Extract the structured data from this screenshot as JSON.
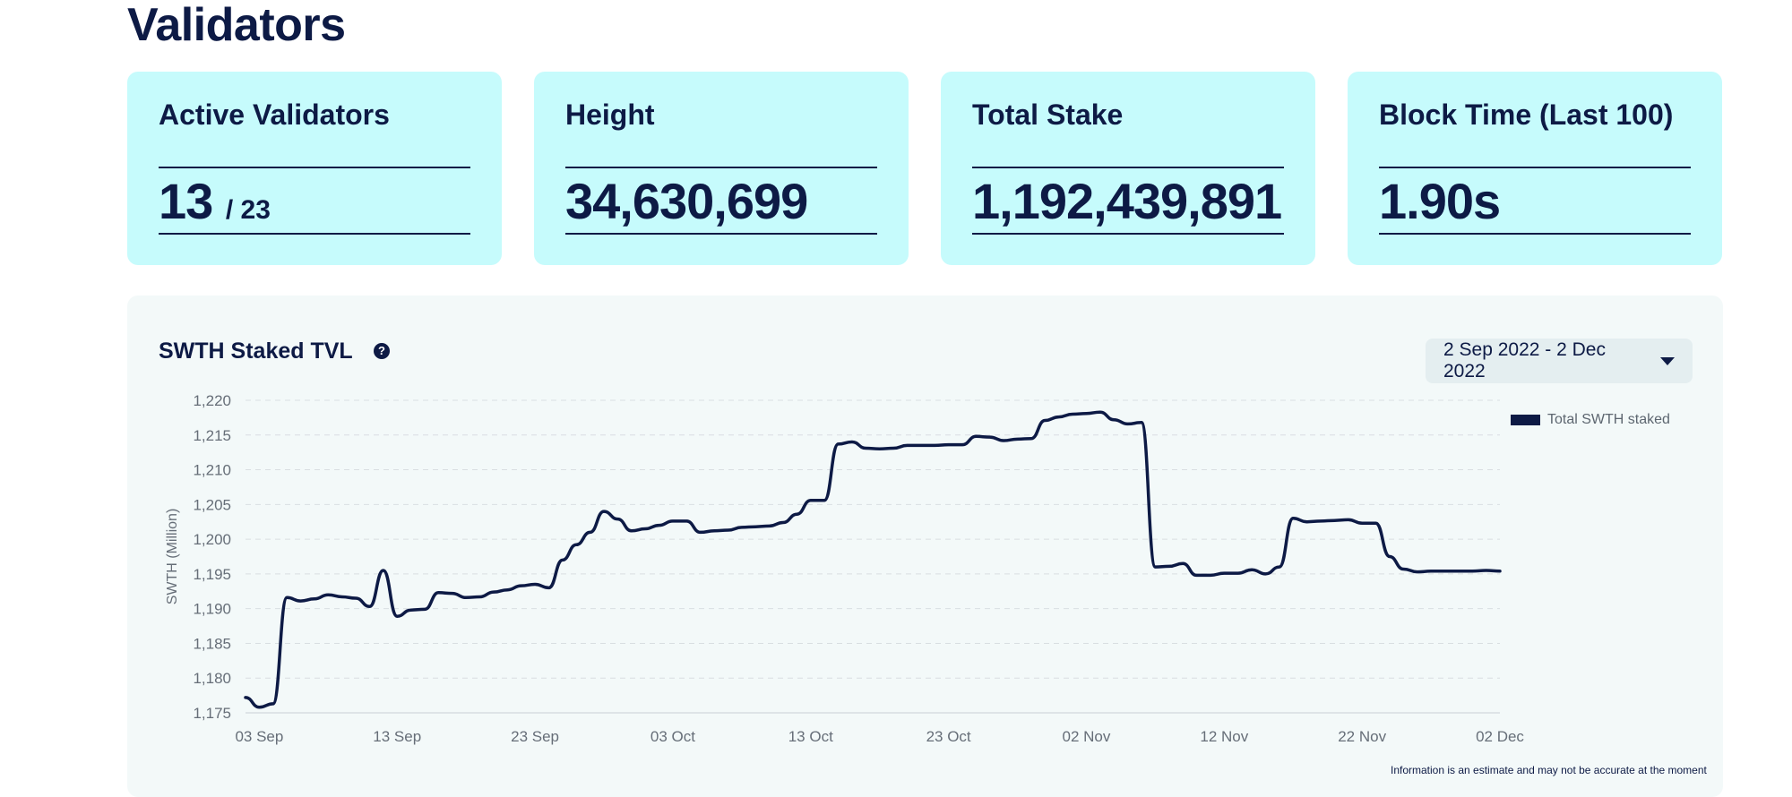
{
  "page": {
    "title": "Validators"
  },
  "cards": [
    {
      "label": "Active Validators",
      "value": "13",
      "suffix": "/ 23"
    },
    {
      "label": "Height",
      "value": "34,630,699"
    },
    {
      "label": "Total Stake",
      "value": "1,192,439,891"
    },
    {
      "label": "Block Time (Last 100)",
      "value": "1.90s"
    }
  ],
  "chart_panel": {
    "title": "SWTH Staked TVL",
    "help_icon": "question-circle-icon",
    "date_range": "2 Sep 2022 - 2 Dec 2022",
    "disclaimer": "Information is an estimate and may not be accurate at the moment"
  },
  "chart_data": {
    "type": "line",
    "ylabel": "SWTH (Million)",
    "xlabel": "",
    "ylim": [
      1175,
      1220
    ],
    "ytick_labels": [
      "1,220",
      "1,215",
      "1,210",
      "1,205",
      "1,200",
      "1,195",
      "1,190",
      "1,185",
      "1,180",
      "1,175"
    ],
    "ytick_values": [
      1220,
      1215,
      1210,
      1205,
      1200,
      1195,
      1190,
      1185,
      1180,
      1175
    ],
    "xtick_labels": [
      "03 Sep",
      "13 Sep",
      "23 Sep",
      "03 Oct",
      "13 Oct",
      "23 Oct",
      "02 Nov",
      "12 Nov",
      "22 Nov",
      "02 Dec"
    ],
    "xlim": [
      "2022-09-02",
      "2022-12-02"
    ],
    "grid": "horizontal-dashed",
    "legend_position": "top-right",
    "series": [
      {
        "name": "Total SWTH staked",
        "color": "#0d1a45",
        "x": [
          "2022-09-02",
          "2022-09-03",
          "2022-09-04",
          "2022-09-05",
          "2022-09-06",
          "2022-09-07",
          "2022-09-08",
          "2022-09-09",
          "2022-09-10",
          "2022-09-11",
          "2022-09-12",
          "2022-09-13",
          "2022-09-14",
          "2022-09-15",
          "2022-09-16",
          "2022-09-17",
          "2022-09-18",
          "2022-09-19",
          "2022-09-20",
          "2022-09-21",
          "2022-09-22",
          "2022-09-23",
          "2022-09-24",
          "2022-09-25",
          "2022-09-26",
          "2022-09-27",
          "2022-09-28",
          "2022-09-29",
          "2022-09-30",
          "2022-10-01",
          "2022-10-02",
          "2022-10-03",
          "2022-10-04",
          "2022-10-05",
          "2022-10-06",
          "2022-10-07",
          "2022-10-08",
          "2022-10-09",
          "2022-10-10",
          "2022-10-11",
          "2022-10-12",
          "2022-10-13",
          "2022-10-14",
          "2022-10-15",
          "2022-10-16",
          "2022-10-17",
          "2022-10-18",
          "2022-10-19",
          "2022-10-20",
          "2022-10-21",
          "2022-10-22",
          "2022-10-23",
          "2022-10-24",
          "2022-10-25",
          "2022-10-26",
          "2022-10-27",
          "2022-10-28",
          "2022-10-29",
          "2022-10-30",
          "2022-10-31",
          "2022-11-01",
          "2022-11-02",
          "2022-11-03",
          "2022-11-04",
          "2022-11-05",
          "2022-11-06",
          "2022-11-07",
          "2022-11-08",
          "2022-11-09",
          "2022-11-10",
          "2022-11-11",
          "2022-11-12",
          "2022-11-13",
          "2022-11-14",
          "2022-11-15",
          "2022-11-16",
          "2022-11-17",
          "2022-11-18",
          "2022-11-19",
          "2022-11-20",
          "2022-11-21",
          "2022-11-22",
          "2022-11-23",
          "2022-11-24",
          "2022-11-25",
          "2022-11-26",
          "2022-11-27",
          "2022-11-28",
          "2022-11-29",
          "2022-11-30",
          "2022-12-01",
          "2022-12-02"
        ],
        "y": [
          1177.2,
          1175.8,
          1176.3,
          1191.6,
          1191.1,
          1191.4,
          1192.0,
          1191.7,
          1191.5,
          1190.3,
          1195.5,
          1188.9,
          1189.8,
          1189.9,
          1192.3,
          1192.2,
          1191.6,
          1191.7,
          1192.4,
          1192.7,
          1193.3,
          1193.5,
          1193.0,
          1197.0,
          1199.2,
          1201.0,
          1204.0,
          1202.9,
          1201.2,
          1201.5,
          1202.0,
          1202.6,
          1202.6,
          1201.0,
          1201.2,
          1201.3,
          1201.7,
          1201.8,
          1201.9,
          1202.4,
          1203.6,
          1205.6,
          1205.6,
          1213.7,
          1214.0,
          1213.1,
          1213.0,
          1213.1,
          1213.5,
          1213.5,
          1213.5,
          1213.6,
          1213.6,
          1214.8,
          1214.7,
          1214.2,
          1214.4,
          1214.5,
          1217.1,
          1217.6,
          1218.0,
          1218.1,
          1218.3,
          1217.2,
          1216.6,
          1216.8,
          1196.0,
          1196.1,
          1196.5,
          1194.8,
          1194.8,
          1195.1,
          1195.1,
          1195.6,
          1195.0,
          1196.0,
          1203.0,
          1202.5,
          1202.6,
          1202.7,
          1202.8,
          1202.3,
          1202.3,
          1197.5,
          1195.7,
          1195.3,
          1195.4,
          1195.4,
          1195.4,
          1195.4,
          1195.5,
          1195.4
        ]
      }
    ]
  }
}
